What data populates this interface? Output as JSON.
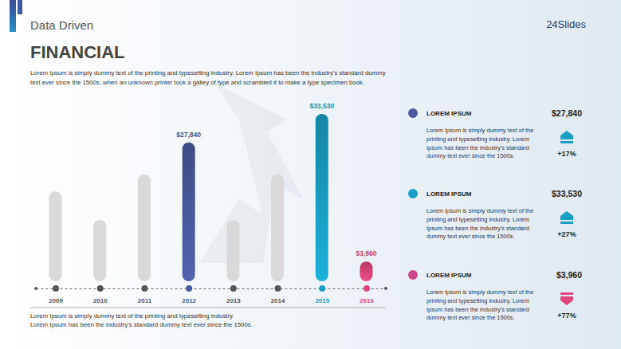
{
  "slide": {
    "header": "Data Driven",
    "title": "FINANCIAL",
    "logo": "24Slides",
    "intro": [
      "Lorem Ipsum is simply dummy text of the printing and typesetting industry. Lorem Ipsum has been the industry's standard dummy",
      "text ever since the 1500s, when an unknown printer took a galley of type and scrambled it to make a type specimen book."
    ],
    "footer": [
      "Lorem Ipsum is simply dummy text of the printing and typesetting industry.",
      "Lorem Ipsum has been the industry's standard dummy text ever since the 1500s."
    ],
    "cards": [
      {
        "title": "LOREM IPSUM",
        "value": "$27,840",
        "change": "+17%",
        "text": [
          "Lorem Ipsum is simply dummy text of the",
          "printing and typesetting industry. Lorem",
          "Ipsum has been the industry's standard",
          "dummy text ever since the 1500s."
        ]
      },
      {
        "title": "LOREM IPSUM",
        "value": "$33,530",
        "change": "+27%",
        "text": [
          "Lorem Ipsum is simply dummy text of the",
          "printing and typesetting industry. Lorem",
          "Ipsum has been the industry's standard",
          "dummy text ever since the 1500s."
        ]
      },
      {
        "title": "LOREM IPSUM",
        "value": "$3,960",
        "change": "+77%",
        "text": [
          "Lorem Ipsum is simply dummy text of the",
          "printing and typesetting industry. Lorem",
          "Ipsum has been the industry's standard",
          "dummy text ever since the 1500s."
        ]
      }
    ]
  },
  "chart_data": {
    "type": "bar",
    "categories": [
      "2009",
      "2010",
      "2011",
      "2012",
      "2013",
      "2014",
      "2015",
      "2016"
    ],
    "values": [
      18000,
      12300,
      21400,
      27840,
      12300,
      21400,
      33530,
      3960
    ],
    "value_labels": [
      null,
      null,
      null,
      "$27,840",
      null,
      null,
      "$33,530",
      "$3,960"
    ],
    "colors": [
      "#d9d9d9",
      "#d9d9d9",
      "#d9d9d9",
      "#4a5a9e",
      "#d9d9d9",
      "#d9d9d9",
      "#1a9fc4",
      "#d9457a"
    ],
    "ylim": [
      0,
      33530
    ],
    "data_labels": true,
    "tick_labels": "x"
  }
}
